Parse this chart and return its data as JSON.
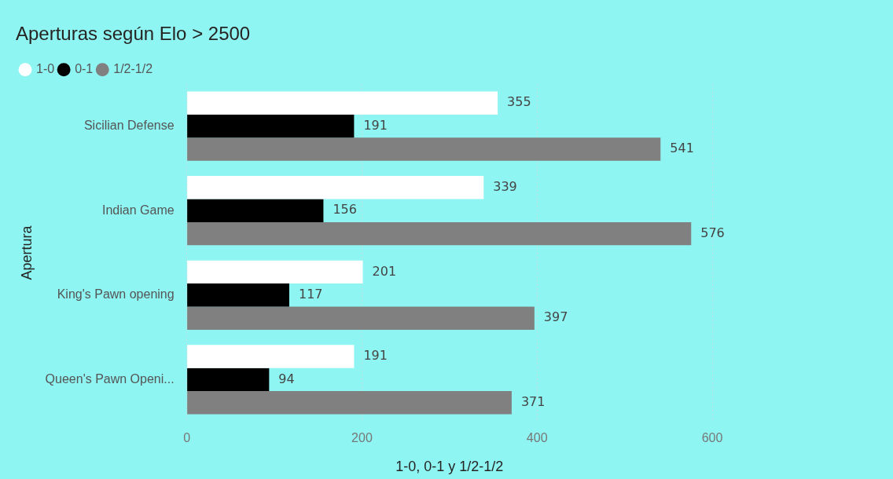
{
  "chart_data": {
    "type": "bar",
    "orientation": "horizontal",
    "title": "Aperturas según Elo > 2500",
    "xlabel": "1-0, 0-1 y 1/2-1/2",
    "ylabel": "Apertura",
    "categories": [
      "Sicilian Defense",
      "Indian Game",
      "King's Pawn opening",
      "Queen's Pawn Openi..."
    ],
    "series": [
      {
        "name": "1-0",
        "color": "#ffffff",
        "values": [
          355,
          339,
          201,
          191
        ]
      },
      {
        "name": "0-1",
        "color": "#000000",
        "values": [
          191,
          156,
          117,
          94
        ]
      },
      {
        "name": "1/2-1/2",
        "color": "#808080",
        "values": [
          541,
          576,
          397,
          371
        ]
      }
    ],
    "xlim": [
      0,
      600
    ],
    "xticks": [
      0,
      200,
      400,
      600
    ],
    "grid": "x",
    "legend": "top left",
    "data_labels": true
  }
}
